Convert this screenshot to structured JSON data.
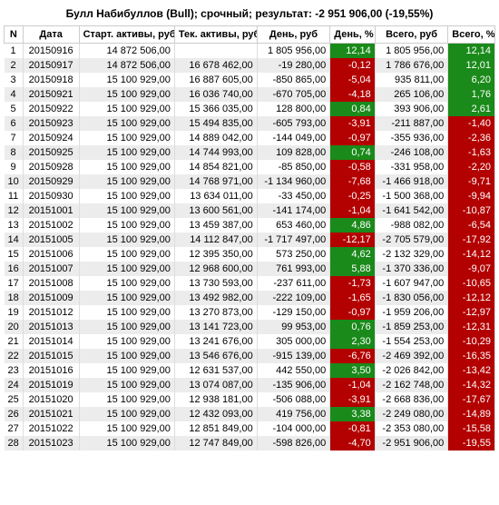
{
  "title": "Булл Набибуллов (Bull); срочный; результат: -2 951 906,00 (-19,55%)",
  "columns": [
    "N",
    "Дата",
    "Старт. активы, руб",
    "Тек. активы, руб",
    "День, руб",
    "День, %",
    "Всего, руб",
    "Всего, %"
  ],
  "green": "#1a8a1a",
  "red": "#b30000",
  "rows": [
    {
      "n": 1,
      "date": "20150916",
      "start": "14 872 506,00",
      "cur": "",
      "day": "1 805 956,00",
      "dpct": "12,14",
      "dcol": "g",
      "tot": "1 805 956,00",
      "tpct": "12,14",
      "tcol": "g"
    },
    {
      "n": 2,
      "date": "20150917",
      "start": "14 872 506,00",
      "cur": "16 678 462,00",
      "day": "-19 280,00",
      "dpct": "-0,12",
      "dcol": "r",
      "tot": "1 786 676,00",
      "tpct": "12,01",
      "tcol": "g"
    },
    {
      "n": 3,
      "date": "20150918",
      "start": "15 100 929,00",
      "cur": "16 887 605,00",
      "day": "-850 865,00",
      "dpct": "-5,04",
      "dcol": "r",
      "tot": "935 811,00",
      "tpct": "6,20",
      "tcol": "g"
    },
    {
      "n": 4,
      "date": "20150921",
      "start": "15 100 929,00",
      "cur": "16 036 740,00",
      "day": "-670 705,00",
      "dpct": "-4,18",
      "dcol": "r",
      "tot": "265 106,00",
      "tpct": "1,76",
      "tcol": "g"
    },
    {
      "n": 5,
      "date": "20150922",
      "start": "15 100 929,00",
      "cur": "15 366 035,00",
      "day": "128 800,00",
      "dpct": "0,84",
      "dcol": "g",
      "tot": "393 906,00",
      "tpct": "2,61",
      "tcol": "g"
    },
    {
      "n": 6,
      "date": "20150923",
      "start": "15 100 929,00",
      "cur": "15 494 835,00",
      "day": "-605 793,00",
      "dpct": "-3,91",
      "dcol": "r",
      "tot": "-211 887,00",
      "tpct": "-1,40",
      "tcol": "r"
    },
    {
      "n": 7,
      "date": "20150924",
      "start": "15 100 929,00",
      "cur": "14 889 042,00",
      "day": "-144 049,00",
      "dpct": "-0,97",
      "dcol": "r",
      "tot": "-355 936,00",
      "tpct": "-2,36",
      "tcol": "r"
    },
    {
      "n": 8,
      "date": "20150925",
      "start": "15 100 929,00",
      "cur": "14 744 993,00",
      "day": "109 828,00",
      "dpct": "0,74",
      "dcol": "g",
      "tot": "-246 108,00",
      "tpct": "-1,63",
      "tcol": "r"
    },
    {
      "n": 9,
      "date": "20150928",
      "start": "15 100 929,00",
      "cur": "14 854 821,00",
      "day": "-85 850,00",
      "dpct": "-0,58",
      "dcol": "r",
      "tot": "-331 958,00",
      "tpct": "-2,20",
      "tcol": "r"
    },
    {
      "n": 10,
      "date": "20150929",
      "start": "15 100 929,00",
      "cur": "14 768 971,00",
      "day": "-1 134 960,00",
      "dpct": "-7,68",
      "dcol": "r",
      "tot": "-1 466 918,00",
      "tpct": "-9,71",
      "tcol": "r"
    },
    {
      "n": 11,
      "date": "20150930",
      "start": "15 100 929,00",
      "cur": "13 634 011,00",
      "day": "-33 450,00",
      "dpct": "-0,25",
      "dcol": "r",
      "tot": "-1 500 368,00",
      "tpct": "-9,94",
      "tcol": "r"
    },
    {
      "n": 12,
      "date": "20151001",
      "start": "15 100 929,00",
      "cur": "13 600 561,00",
      "day": "-141 174,00",
      "dpct": "-1,04",
      "dcol": "r",
      "tot": "-1 641 542,00",
      "tpct": "-10,87",
      "tcol": "r"
    },
    {
      "n": 13,
      "date": "20151002",
      "start": "15 100 929,00",
      "cur": "13 459 387,00",
      "day": "653 460,00",
      "dpct": "4,86",
      "dcol": "g",
      "tot": "-988 082,00",
      "tpct": "-6,54",
      "tcol": "r"
    },
    {
      "n": 14,
      "date": "20151005",
      "start": "15 100 929,00",
      "cur": "14 112 847,00",
      "day": "-1 717 497,00",
      "dpct": "-12,17",
      "dcol": "r",
      "tot": "-2 705 579,00",
      "tpct": "-17,92",
      "tcol": "r"
    },
    {
      "n": 15,
      "date": "20151006",
      "start": "15 100 929,00",
      "cur": "12 395 350,00",
      "day": "573 250,00",
      "dpct": "4,62",
      "dcol": "g",
      "tot": "-2 132 329,00",
      "tpct": "-14,12",
      "tcol": "r"
    },
    {
      "n": 16,
      "date": "20151007",
      "start": "15 100 929,00",
      "cur": "12 968 600,00",
      "day": "761 993,00",
      "dpct": "5,88",
      "dcol": "g",
      "tot": "-1 370 336,00",
      "tpct": "-9,07",
      "tcol": "r"
    },
    {
      "n": 17,
      "date": "20151008",
      "start": "15 100 929,00",
      "cur": "13 730 593,00",
      "day": "-237 611,00",
      "dpct": "-1,73",
      "dcol": "r",
      "tot": "-1 607 947,00",
      "tpct": "-10,65",
      "tcol": "r"
    },
    {
      "n": 18,
      "date": "20151009",
      "start": "15 100 929,00",
      "cur": "13 492 982,00",
      "day": "-222 109,00",
      "dpct": "-1,65",
      "dcol": "r",
      "tot": "-1 830 056,00",
      "tpct": "-12,12",
      "tcol": "r"
    },
    {
      "n": 19,
      "date": "20151012",
      "start": "15 100 929,00",
      "cur": "13 270 873,00",
      "day": "-129 150,00",
      "dpct": "-0,97",
      "dcol": "r",
      "tot": "-1 959 206,00",
      "tpct": "-12,97",
      "tcol": "r"
    },
    {
      "n": 20,
      "date": "20151013",
      "start": "15 100 929,00",
      "cur": "13 141 723,00",
      "day": "99 953,00",
      "dpct": "0,76",
      "dcol": "g",
      "tot": "-1 859 253,00",
      "tpct": "-12,31",
      "tcol": "r"
    },
    {
      "n": 21,
      "date": "20151014",
      "start": "15 100 929,00",
      "cur": "13 241 676,00",
      "day": "305 000,00",
      "dpct": "2,30",
      "dcol": "g",
      "tot": "-1 554 253,00",
      "tpct": "-10,29",
      "tcol": "r"
    },
    {
      "n": 22,
      "date": "20151015",
      "start": "15 100 929,00",
      "cur": "13 546 676,00",
      "day": "-915 139,00",
      "dpct": "-6,76",
      "dcol": "r",
      "tot": "-2 469 392,00",
      "tpct": "-16,35",
      "tcol": "r"
    },
    {
      "n": 23,
      "date": "20151016",
      "start": "15 100 929,00",
      "cur": "12 631 537,00",
      "day": "442 550,00",
      "dpct": "3,50",
      "dcol": "g",
      "tot": "-2 026 842,00",
      "tpct": "-13,42",
      "tcol": "r"
    },
    {
      "n": 24,
      "date": "20151019",
      "start": "15 100 929,00",
      "cur": "13 074 087,00",
      "day": "-135 906,00",
      "dpct": "-1,04",
      "dcol": "r",
      "tot": "-2 162 748,00",
      "tpct": "-14,32",
      "tcol": "r"
    },
    {
      "n": 25,
      "date": "20151020",
      "start": "15 100 929,00",
      "cur": "12 938 181,00",
      "day": "-506 088,00",
      "dpct": "-3,91",
      "dcol": "r",
      "tot": "-2 668 836,00",
      "tpct": "-17,67",
      "tcol": "r"
    },
    {
      "n": 26,
      "date": "20151021",
      "start": "15 100 929,00",
      "cur": "12 432 093,00",
      "day": "419 756,00",
      "dpct": "3,38",
      "dcol": "g",
      "tot": "-2 249 080,00",
      "tpct": "-14,89",
      "tcol": "r"
    },
    {
      "n": 27,
      "date": "20151022",
      "start": "15 100 929,00",
      "cur": "12 851 849,00",
      "day": "-104 000,00",
      "dpct": "-0,81",
      "dcol": "r",
      "tot": "-2 353 080,00",
      "tpct": "-15,58",
      "tcol": "r"
    },
    {
      "n": 28,
      "date": "20151023",
      "start": "15 100 929,00",
      "cur": "12 747 849,00",
      "day": "-598 826,00",
      "dpct": "-4,70",
      "dcol": "r",
      "tot": "-2 951 906,00",
      "tpct": "-19,55",
      "tcol": "r"
    }
  ]
}
